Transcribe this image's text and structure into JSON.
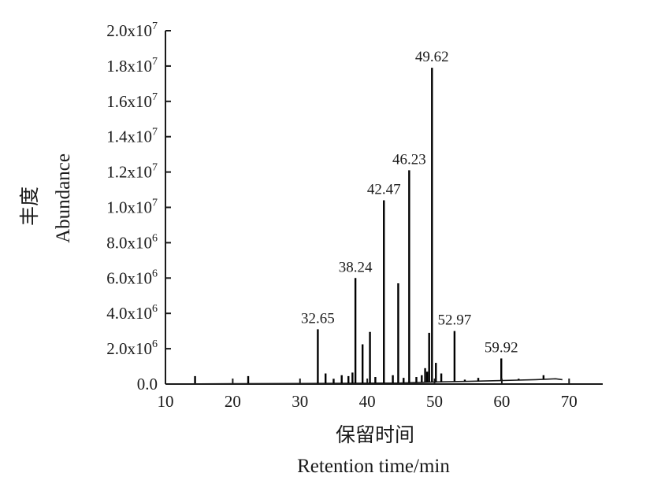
{
  "chart_data": {
    "type": "line",
    "title": "",
    "xlabel_cn": "保留时间",
    "xlabel": "Retention time/min",
    "ylabel_cn": "丰度",
    "ylabel": "Abundance",
    "xlim": [
      10,
      75
    ],
    "ylim": [
      0,
      20000000
    ],
    "x_ticks": [
      10,
      20,
      30,
      40,
      50,
      60,
      70
    ],
    "x_tick_labels": [
      "10",
      "20",
      "30",
      "40",
      "50",
      "60",
      "70"
    ],
    "y_ticks": [
      0,
      2000000,
      4000000,
      6000000,
      8000000,
      10000000,
      12000000,
      14000000,
      16000000,
      18000000,
      20000000
    ],
    "y_tick_labels": [
      {
        "mantissa": "0.0",
        "exp": ""
      },
      {
        "mantissa": "2.0x10",
        "exp": "6"
      },
      {
        "mantissa": "4.0x10",
        "exp": "6"
      },
      {
        "mantissa": "6.0x10",
        "exp": "6"
      },
      {
        "mantissa": "8.0x10",
        "exp": "6"
      },
      {
        "mantissa": "1.0x10",
        "exp": "7"
      },
      {
        "mantissa": "1.2x10",
        "exp": "7"
      },
      {
        "mantissa": "1.4x10",
        "exp": "7"
      },
      {
        "mantissa": "1.6x10",
        "exp": "7"
      },
      {
        "mantissa": "1.8x10",
        "exp": "7"
      },
      {
        "mantissa": "2.0x10",
        "exp": "7"
      }
    ],
    "grid": false,
    "baseline": [
      {
        "x": 10.5,
        "y": 0
      },
      {
        "x": 20,
        "y": 20000
      },
      {
        "x": 30,
        "y": 30000
      },
      {
        "x": 45,
        "y": 60000
      },
      {
        "x": 50.5,
        "y": 120000
      },
      {
        "x": 55,
        "y": 150000
      },
      {
        "x": 60,
        "y": 200000
      },
      {
        "x": 65,
        "y": 250000
      },
      {
        "x": 68,
        "y": 300000
      },
      {
        "x": 69,
        "y": 250000
      }
    ],
    "peaks": [
      {
        "x": 14.4,
        "y": 450000
      },
      {
        "x": 22.3,
        "y": 450000
      },
      {
        "x": 32.65,
        "y": 3100000,
        "label": "32.65"
      },
      {
        "x": 33.8,
        "y": 600000
      },
      {
        "x": 35.0,
        "y": 300000
      },
      {
        "x": 36.2,
        "y": 500000
      },
      {
        "x": 37.2,
        "y": 450000
      },
      {
        "x": 37.8,
        "y": 650000
      },
      {
        "x": 38.24,
        "y": 6000000,
        "label": "38.24"
      },
      {
        "x": 39.3,
        "y": 2250000
      },
      {
        "x": 40.4,
        "y": 2950000
      },
      {
        "x": 41.2,
        "y": 400000
      },
      {
        "x": 42.47,
        "y": 10400000,
        "label": "42.47"
      },
      {
        "x": 43.8,
        "y": 500000
      },
      {
        "x": 44.6,
        "y": 5700000
      },
      {
        "x": 45.4,
        "y": 350000
      },
      {
        "x": 46.23,
        "y": 12100000,
        "label": "46.23"
      },
      {
        "x": 47.3,
        "y": 400000
      },
      {
        "x": 48.1,
        "y": 500000
      },
      {
        "x": 48.6,
        "y": 900000
      },
      {
        "x": 48.9,
        "y": 700000
      },
      {
        "x": 49.2,
        "y": 2900000
      },
      {
        "x": 49.62,
        "y": 17900000,
        "label": "49.62"
      },
      {
        "x": 50.2,
        "y": 1200000
      },
      {
        "x": 51.0,
        "y": 600000
      },
      {
        "x": 52.97,
        "y": 3000000,
        "label": "52.97"
      },
      {
        "x": 54.5,
        "y": 250000
      },
      {
        "x": 56.5,
        "y": 350000
      },
      {
        "x": 59.92,
        "y": 1450000,
        "label": "59.92"
      },
      {
        "x": 62.5,
        "y": 300000
      },
      {
        "x": 66.2,
        "y": 500000
      }
    ]
  }
}
